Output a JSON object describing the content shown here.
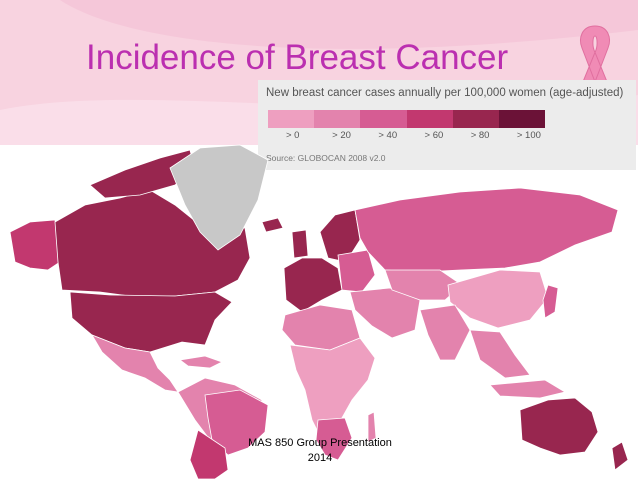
{
  "slide": {
    "title": "Incidence of Breast Cancer",
    "footer_line1": "MAS 850 Group Presentation",
    "footer_line2": "2014"
  },
  "legend": {
    "title": "New breast cancer cases annually per 100,000 women (age-adjusted)",
    "source": "Source: GLOBOCAN 2008 v2.0",
    "bins": [
      {
        "label": "> 0",
        "color": "#ee9fc0"
      },
      {
        "label": "> 20",
        "color": "#e383ad"
      },
      {
        "label": "> 40",
        "color": "#d65c93"
      },
      {
        "label": "> 60",
        "color": "#c2386f"
      },
      {
        "label": "> 80",
        "color": "#98264f"
      },
      {
        "label": "> 100",
        "color": "#6b1237"
      }
    ]
  },
  "map": {
    "no_data_color": "#c8c8c8",
    "ocean_color": "#ffffff"
  }
}
